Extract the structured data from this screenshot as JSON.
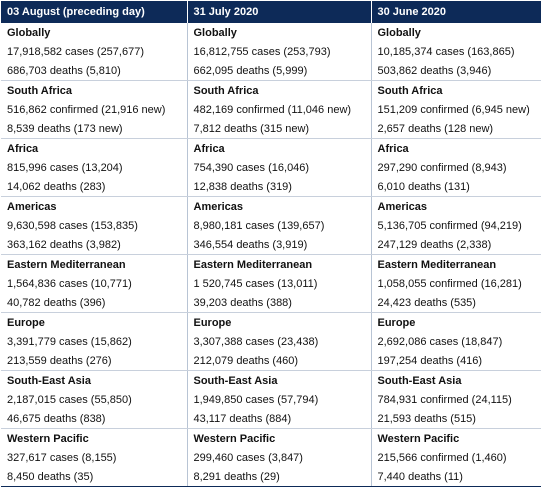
{
  "columns": [
    "03 August (preceding day)",
    "31 July 2020",
    "30 June 2020"
  ],
  "sections": [
    {
      "titles": [
        "Globally",
        "Globally",
        "Globally"
      ],
      "lines": [
        [
          "17,918,582 cases (257,677)",
          "16,812,755 cases (253,793)",
          "10,185,374 cases (163,865)"
        ],
        [
          "686,703 deaths (5,810)",
          "662,095 deaths (5,999)",
          "503,862 deaths (3,946)"
        ]
      ]
    },
    {
      "titles": [
        "South Africa",
        "South Africa",
        "South Africa"
      ],
      "lines": [
        [
          "516,862 confirmed (21,916 new)",
          "482,169 confirmed (11,046 new)",
          "151,209 confirmed (6,945 new)"
        ],
        [
          "8,539 deaths (173 new)",
          "7,812 deaths (315 new)",
          "2,657 deaths (128 new)"
        ]
      ]
    },
    {
      "titles": [
        "Africa",
        "Africa",
        "Africa"
      ],
      "lines": [
        [
          "815,996 cases (13,204)",
          "754,390 cases (16,046)",
          "297,290 confirmed (8,943)"
        ],
        [
          "14,062 deaths (283)",
          "12,838 deaths (319)",
          "6,010 deaths (131)"
        ]
      ]
    },
    {
      "titles": [
        "Americas",
        "Americas",
        "Americas"
      ],
      "lines": [
        [
          "9,630,598 cases (153,835)",
          "8,980,181 cases (139,657)",
          "5,136,705 confirmed (94,219)"
        ],
        [
          "363,162 deaths (3,982)",
          "346,554 deaths (3,919)",
          "247,129 deaths (2,338)"
        ]
      ]
    },
    {
      "titles": [
        "Eastern Mediterranean",
        "Eastern Mediterranean",
        "Eastern Mediterranean"
      ],
      "lines": [
        [
          "1,564,836 cases (10,771)",
          "1 520,745 cases (13,011)",
          "1,058,055 confirmed (16,281)"
        ],
        [
          "40,782 deaths (396)",
          "39,203 deaths (388)",
          "24,423 deaths (535)"
        ]
      ]
    },
    {
      "titles": [
        "Europe",
        "Europe",
        "Europe"
      ],
      "lines": [
        [
          "3,391,779 cases (15,862)",
          "3,307,388 cases (23,438)",
          "2,692,086 cases (18,847)"
        ],
        [
          "213,559 deaths (276)",
          "212,079 deaths (460)",
          "197,254 deaths (416)"
        ]
      ]
    },
    {
      "titles": [
        "South-East Asia",
        "South-East Asia",
        "South-East Asia"
      ],
      "lines": [
        [
          "2,187,015 cases (55,850)",
          "1,949,850 cases (57,794)",
          "784,931 confirmed (24,115)"
        ],
        [
          "46,675 deaths (838)",
          "43,117 deaths (884)",
          "21,593 deaths (515)"
        ]
      ]
    },
    {
      "titles": [
        "Western Pacific",
        "Western Pacific",
        "Western Pacific"
      ],
      "lines": [
        [
          "327,617 cases (8,155)",
          "299,460 cases (3,847)",
          "215,566 confirmed (1,460)"
        ],
        [
          "8,450 deaths (35)",
          "8,291 deaths (29)",
          "7,440 deaths (11)"
        ]
      ]
    }
  ]
}
